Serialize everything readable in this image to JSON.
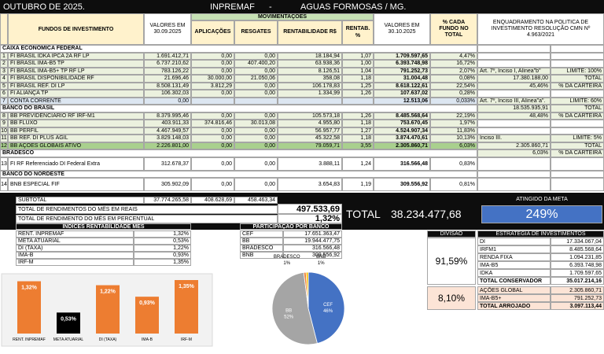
{
  "header": {
    "month": "OUTUBRO DE 2025.",
    "entity": "INPREMAF",
    "separator": "-",
    "city": "AGUAS FORMOSAS / MG."
  },
  "table": {
    "columns": {
      "fund": "FUNDOS DE INVESTIMENTO",
      "sep": "VALORES EM 30.09.2025",
      "movements": "MOVIMENTAÇÕES",
      "apl": "APLICAÇÕES",
      "resg": "RESGATES",
      "rent": "RENTABILIDADE R$",
      "rentp": "RENTAB. %",
      "oct": "VALORES EM 30.10.2025",
      "pct": "% CADA FUNDO NO TOTAL",
      "enq": "ENQUADRAMENTO NA POLITICA DE INVESTIMENTO RESOLUÇÃO CMN Nº 4.963/2021"
    },
    "rows": [
      {
        "section": "CAIXA ECONÔMICA FEDERAL"
      },
      {
        "n": "1",
        "fund": "FI BRASIL IDKA IPCA 2A RF LP",
        "sep": "1.691.412,71",
        "apl": "0,00",
        "resg": "0,00",
        "rent": "18.184,94",
        "rentp": "1,07",
        "oct": "1.709.597,65",
        "pct": "4,47%"
      },
      {
        "n": "2",
        "fund": "FI BRASIL IMA-B5 TP",
        "sep": "6.737.210,62",
        "apl": "0,00",
        "resg": "407.400,20",
        "rent": "63.938,36",
        "rentp": "1,00",
        "oct": "6.393.748,98",
        "pct": "16,72%"
      },
      {
        "n": "3",
        "fund": "FI BRASIL IMA-B5+ TP RF LP",
        "sep": "783.126,22",
        "apl": "0,00",
        "resg": "0,00",
        "rent": "8.126,51",
        "rentp": "1,04",
        "oct": "791.252,73",
        "pct": "2,07%",
        "enq_a": "Art. 7º, Inciso I, Alínea\"b\"",
        "enq_b": "LIMITE: 100%"
      },
      {
        "n": "4",
        "fund": "FI BRASIL DISPONIBILIDADE RF",
        "sep": "21.696,46",
        "apl": "30.000,00",
        "resg": "21.050,06",
        "rent": "358,08",
        "rentp": "1,18",
        "oct": "31.004,48",
        "pct": "0,08%",
        "enq_a": "17.380.188,00",
        "enq_b": "TOTAL"
      },
      {
        "n": "5",
        "fund": "FI BRASIL REF. DI LP",
        "sep": "8.508.131,49",
        "apl": "3.812,29",
        "resg": "0,00",
        "rent": "106.178,83",
        "rentp": "1,25",
        "oct": "8.618.122,61",
        "pct": "22,54%",
        "enq_a": "45,46%",
        "enq_b": "% DA CARTEIRA"
      },
      {
        "n": "6",
        "fund": "FI ALIANÇA TP",
        "sep": "106.302,03",
        "apl": "0,00",
        "resg": "0,00",
        "rent": "1.334,99",
        "rentp": "1,26",
        "oct": "107.637,02",
        "pct": "0,28%"
      },
      {
        "n": "7",
        "fund": "CONTA CORRENTE",
        "sep": "0,00",
        "oct": "12.513,06",
        "pct": "0,033%",
        "enq_a": "Art. 7º, Inciso III, Alínea\"a\".",
        "enq_b": "LIMITE: 60%"
      },
      {
        "section": "BANCO DO BRASIL",
        "enq_a": "18.535.935,91",
        "enq_b": "TOTAL"
      },
      {
        "n": "8",
        "fund": "BB PREVIDENCIÁRIO RF IRF-M1",
        "sep": "8.379.995,46",
        "apl": "0,00",
        "resg": "0,00",
        "rent": "105.573,18",
        "rentp": "1,26",
        "oct": "8.485.568,64",
        "pct": "22,19%",
        "enq_a": "48,48%",
        "enq_b": "% DA CARTEIRA"
      },
      {
        "n": "9",
        "fund": "BB FLUXO",
        "sep": "403.911,33",
        "apl": "374.816,46",
        "resg": "30.013,08",
        "rent": "4.955,80",
        "rentp": "1,18",
        "oct": "753.670,45",
        "pct": "1,97%"
      },
      {
        "n": "10",
        "fund": "BB PERFIL",
        "sep": "4.467.949,57",
        "apl": "0,00",
        "resg": "0,00",
        "rent": "56.957,77",
        "rentp": "1,27",
        "oct": "4.524.907,34",
        "pct": "11,83%"
      },
      {
        "n": "11",
        "fund": "BB REF. DI PLUS ÁGIL",
        "sep": "3.829.148,03",
        "apl": "0,00",
        "resg": "0,00",
        "rent": "45.322,58",
        "rentp": "1,18",
        "oct": "3.874.470,61",
        "pct": "10,13%",
        "enq_a": "Inciso III.",
        "enq_b": "LIMITE: 5%"
      },
      {
        "n": "12",
        "fund": "BB AÇÕES GLOBAIS ATIVO",
        "sep": "2.226.801,00",
        "apl": "0,00",
        "resg": "0,00",
        "rent": "79.059,71",
        "rentp": "3,55",
        "oct": "2.305.860,71",
        "pct": "6,03%",
        "enq_a": "2.305.860,71",
        "enq_b": "TOTAL"
      },
      {
        "section": "BRADESCO",
        "enq_a": "6,03%",
        "enq_b": "% DA CARTEIRA"
      },
      {
        "n": "13",
        "fund": "FI RF Referenciado DI Federal Extra",
        "sep": "312.678,37",
        "apl": "0,00",
        "resg": "0,00",
        "rent": "3.888,11",
        "rentp": "1,24",
        "oct": "316.566,48",
        "pct": "0,83%"
      },
      {
        "section": "BANCO DO NORDESTE"
      },
      {
        "n": "14",
        "fund": "BNB ESPECIAL FIF",
        "sep": "305.902,09",
        "apl": "0,00",
        "resg": "0,00",
        "rent": "3.654,83",
        "rentp": "1,19",
        "oct": "309.556,92",
        "pct": "0,81%"
      }
    ]
  },
  "totals": {
    "subtotal_label": "SUBTOTAL",
    "subtotal_sep": "37.774.265,58",
    "subtotal_apl": "408.628,69",
    "subtotal_resg": "458.463,34",
    "month_reais_label": "TOTAL DE RENDIMENTOS DO MÊS EM REAIS",
    "month_reais": "497.533,69",
    "month_pct_label": "TOTAL DE RENDIMENTO DO MÊS EM PERCENTUAL",
    "month_pct": "1,32%",
    "total_label": "TOTAL",
    "total": "38.234.477,68",
    "goal_label": "ATINGIDO DA META",
    "goal": "249%"
  },
  "indices": {
    "title": "INDICES RENTABILIDADE MÊS",
    "rows": [
      [
        "RENT. INPREMAF",
        "1,32%"
      ],
      [
        "META ATUARIAL",
        "0,53%"
      ],
      [
        "DI (TAXA)",
        "1,22%"
      ],
      [
        "IMA-B",
        "0,93%"
      ],
      [
        "IRF-M",
        "1,35%"
      ]
    ]
  },
  "participacao": {
    "title": "PARTICIPAÇÃO POR BANCO",
    "rows": [
      [
        "CEF",
        "17.651.363,47"
      ],
      [
        "BB",
        "19.944.477,75"
      ],
      [
        "BRADESCO",
        "316.566,48"
      ],
      [
        "BNB",
        "309.556,92"
      ]
    ]
  },
  "estrategia": {
    "division_label": "DIVISÃO",
    "title": "ESTRATÉGIA DE INVESTIMENTOS",
    "groups": [
      {
        "share": "91,59%",
        "rows": [
          [
            "DI",
            "17.334.067,04"
          ],
          [
            "IRFM1",
            "8.485.568,64"
          ],
          [
            "RENDA FIXA",
            "1.094.231,85"
          ],
          [
            "IMA-B5",
            "6.393.748,98"
          ],
          [
            "IDKA",
            "1.709.597,65"
          ],
          [
            "TOTAL CONSERVADOR",
            "35.017.214,16"
          ]
        ]
      },
      {
        "share": "8,10%",
        "rows": [
          [
            "AÇÕES GLOBAL",
            "2.305.860,71"
          ],
          [
            "IMA-B5+",
            "791.252,73"
          ],
          [
            "TOTAL ARROJADO",
            "3.097.113,44"
          ]
        ]
      }
    ]
  },
  "bar_chart": {
    "type": "bar",
    "categories": [
      "RENT. INPREMAF",
      "META ATUARIAL",
      "DI (TAXA)",
      "IMA-B",
      "IRF-M"
    ],
    "values": [
      1.32,
      0.53,
      1.22,
      0.93,
      1.35
    ],
    "value_labels": [
      "1,32%",
      "0,53%",
      "1,22%",
      "0,93%",
      "1,35%"
    ],
    "colors": [
      "#ed7d31",
      "#000000",
      "#ed7d31",
      "#ed7d31",
      "#ed7d31"
    ]
  },
  "pie_chart": {
    "type": "pie",
    "categories": [
      "CEF",
      "BB",
      "BRADESCO",
      "BNB"
    ],
    "values": [
      46,
      52,
      1,
      1
    ],
    "value_labels": [
      "46%",
      "52%",
      "1%",
      "1%"
    ],
    "colors": [
      "#4472c4",
      "#a5a5a5",
      "#ed7d31",
      "#ffc000"
    ]
  }
}
